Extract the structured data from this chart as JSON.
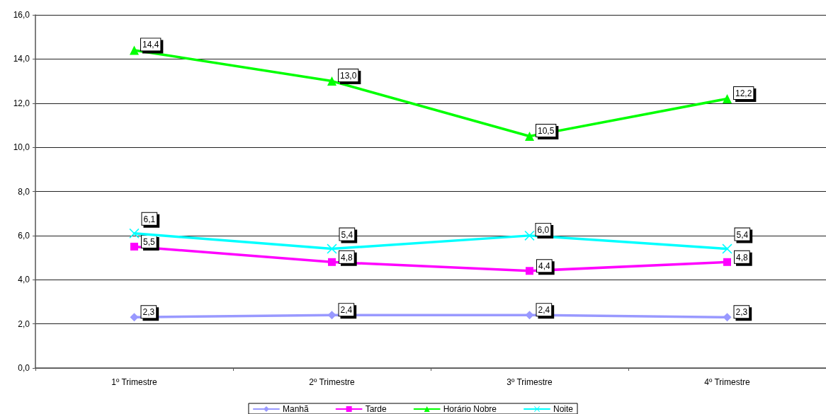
{
  "chart_data": {
    "type": "line",
    "categories": [
      "1º Trimestre",
      "2º Trimestre",
      "3º Trimestre",
      "4º Trimestre"
    ],
    "series": [
      {
        "name": "Manhã",
        "color": "#9999ff",
        "marker": "diamond",
        "values": [
          2.3,
          2.4,
          2.4,
          2.3
        ],
        "value_labels": [
          "2,3",
          "2,4",
          "2,4",
          "2,3"
        ]
      },
      {
        "name": "Tarde",
        "color": "#ff00ff",
        "marker": "square",
        "values": [
          5.5,
          4.8,
          4.4,
          4.8
        ],
        "value_labels": [
          "5,5",
          "4,8",
          "4,4",
          "4,8"
        ]
      },
      {
        "name": "Horário Nobre",
        "color": "#00ff00",
        "marker": "triangle",
        "values": [
          14.4,
          13.0,
          10.5,
          12.2
        ],
        "value_labels": [
          "14,4",
          "13,0",
          "10,5",
          "12,2"
        ]
      },
      {
        "name": "Noite",
        "color": "#00ffff",
        "marker": "cross",
        "values": [
          6.1,
          5.4,
          6.0,
          5.4
        ],
        "value_labels": [
          "6,1",
          "5,4",
          "6,0",
          "5,4"
        ]
      }
    ],
    "ylim": [
      0,
      16
    ],
    "yticks": [
      {
        "value": 0,
        "label": "0,0"
      },
      {
        "value": 2,
        "label": "2,0"
      },
      {
        "value": 4,
        "label": "4,0"
      },
      {
        "value": 6,
        "label": "6,0"
      },
      {
        "value": 8,
        "label": "8,0"
      },
      {
        "value": 10,
        "label": "10,0"
      },
      {
        "value": 12,
        "label": "12,0"
      },
      {
        "value": 14,
        "label": "14,0"
      },
      {
        "value": 16,
        "label": "16,0"
      }
    ],
    "grid": "y",
    "legend": "bottom",
    "line_style": "solid"
  }
}
